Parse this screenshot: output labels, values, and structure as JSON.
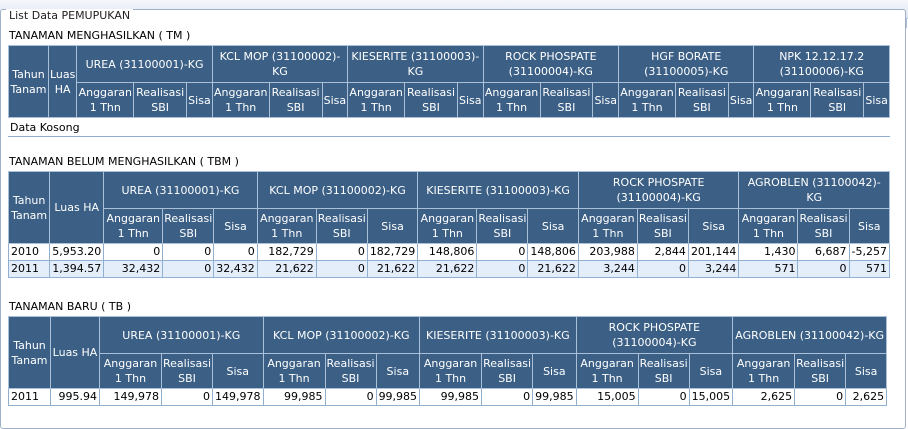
{
  "legend": "List Data PEMUPUKAN",
  "tm": {
    "title": "TANAMAN MENGHASILKAN ( TM )",
    "tahun": "Tahun Tanam",
    "luas": "Luas HA",
    "products": [
      "UREA (31100001)-KG",
      "KCL MOP (31100002)-KG",
      "KIESERITE (31100003)-KG",
      "ROCK PHOSPATE (31100004)-KG",
      "HGF BORATE (31100005)-KG",
      "NPK 12.12.17.2 (31100006)-KG"
    ],
    "sub": [
      "Anggaran 1 Thn",
      "Realisasi SBI",
      "Sisa"
    ],
    "empty": "Data Kosong"
  },
  "tbm": {
    "title": "TANAMAN BELUM MENGHASILKAN ( TBM )",
    "tahun": "Tahun Tanam",
    "luas": "Luas HA",
    "products": [
      "UREA (31100001)-KG",
      "KCL MOP (31100002)-KG",
      "KIESERITE (31100003)-KG",
      "ROCK PHOSPATE (31100004)-KG",
      "AGROBLEN (31100042)-KG"
    ],
    "sub": [
      "Anggaran 1 Thn",
      "Realisasi SBI",
      "Sisa"
    ],
    "rows": [
      [
        "2010",
        "5,953.20",
        "0",
        "0",
        "0",
        "182,729",
        "0",
        "182,729",
        "148,806",
        "0",
        "148,806",
        "203,988",
        "2,844",
        "201,144",
        "1,430",
        "6,687",
        "-5,257"
      ],
      [
        "2011",
        "1,394.57",
        "32,432",
        "0",
        "32,432",
        "21,622",
        "0",
        "21,622",
        "21,622",
        "0",
        "21,622",
        "3,244",
        "0",
        "3,244",
        "571",
        "0",
        "571"
      ]
    ]
  },
  "tb": {
    "title": "TANAMAN BARU ( TB )",
    "tahun": "Tahun Tanam",
    "luas": "Luas HA",
    "products": [
      "UREA (31100001)-KG",
      "KCL MOP (31100002)-KG",
      "KIESERITE (31100003)-KG",
      "ROCK PHOSPATE (31100004)-KG",
      "AGROBLEN (31100042)-KG"
    ],
    "sub": [
      "Anggaran 1 Thn",
      "Realisasi SBI",
      "Sisa"
    ],
    "rows": [
      [
        "2011",
        "995.94",
        "149,978",
        "0",
        "149,978",
        "99,985",
        "0",
        "99,985",
        "99,985",
        "0",
        "99,985",
        "15,005",
        "0",
        "15,005",
        "2,625",
        "0",
        "2,625"
      ]
    ]
  }
}
